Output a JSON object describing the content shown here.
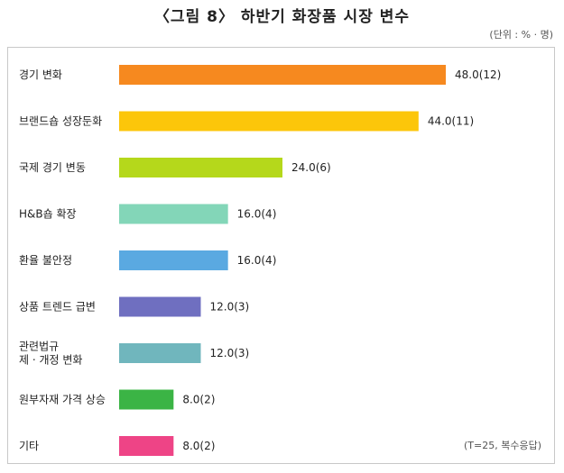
{
  "chart_data": {
    "type": "bar",
    "orientation": "horizontal",
    "title": "〈그림 8〉 하반기 화장품 시장 변수",
    "unit_note": "(단위 : % · 명)",
    "sample_note": "(T=25, 복수응답)",
    "categories": [
      [
        "경기 변화"
      ],
      [
        "브랜드숍 성장둔화"
      ],
      [
        "국제 경기 변동"
      ],
      [
        "H&B숍 확장"
      ],
      [
        "환율 불안정"
      ],
      [
        "상품 트렌드 급변"
      ],
      [
        "관련법규",
        "제 · 개정 변화"
      ],
      [
        "원부자재 가격 상승"
      ],
      [
        "기타"
      ]
    ],
    "values": [
      48.0,
      44.0,
      24.0,
      16.0,
      16.0,
      12.0,
      12.0,
      8.0,
      8.0
    ],
    "value_labels": [
      "48.0(12)",
      "44.0(11)",
      "24.0(6)",
      "16.0(4)",
      "16.0(4)",
      "12.0(3)",
      "12.0(3)",
      "8.0(2)",
      "8.0(2)"
    ],
    "colors": [
      "#f6891f",
      "#fcc60a",
      "#b5d81b",
      "#83d6b8",
      "#5aa9e1",
      "#6f6fc0",
      "#70b6bd",
      "#3bb445",
      "#ee4486"
    ],
    "xlim": [
      0,
      48
    ],
    "grid": false,
    "legend": "none"
  }
}
